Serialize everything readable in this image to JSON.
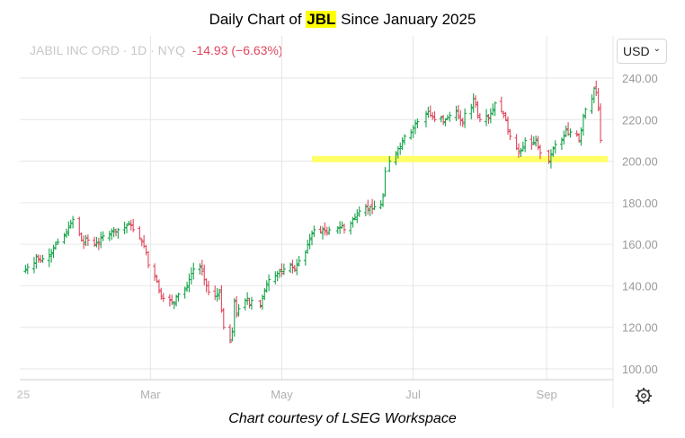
{
  "title": {
    "prefix": "Daily Chart of ",
    "ticker": "JBL",
    "suffix": " Since January 2025"
  },
  "info": {
    "name": "JABIL INC ORD",
    "sep1": "·",
    "interval": "1D",
    "sep2": "·",
    "exchange": "NYQ",
    "change": "-14.93 (−6.63%)"
  },
  "currency": {
    "label": "USD",
    "chevron": "⌄"
  },
  "footer": "Chart courtesy of LSEG Workspace",
  "settings_icon": "gear-icon",
  "colors": {
    "up": "#16a34a",
    "down": "#e0485e",
    "highlight": "#ffff66",
    "grid": "#e6e6e6"
  },
  "chart_data": {
    "type": "ohlc",
    "ylim": [
      94,
      244
    ],
    "yticks": [
      100,
      120,
      140,
      160,
      180,
      200,
      220,
      240
    ],
    "ytick_labels": [
      "100.00",
      "120.00",
      "140.00",
      "160.00",
      "180.00",
      "200.00",
      "220.00",
      "240.00"
    ],
    "x_labels": [
      {
        "label": "25",
        "date": "2025-01-01"
      },
      {
        "label": "Mar",
        "date": "2025-03-01"
      },
      {
        "label": "May",
        "date": "2025-05-01"
      },
      {
        "label": "Jul",
        "date": "2025-07-01"
      },
      {
        "label": "Sep",
        "date": "2025-09-01"
      }
    ],
    "x_range": [
      "2025-01-01",
      "2025-10-01"
    ],
    "support_level": {
      "value": 201,
      "from": "2025-05-15",
      "to": "2025-10-01"
    },
    "grid": true,
    "closes": [
      [
        "2025-01-02",
        148
      ],
      [
        "2025-01-03",
        149
      ],
      [
        "2025-01-06",
        151
      ],
      [
        "2025-01-07",
        154
      ],
      [
        "2025-01-08",
        153
      ],
      [
        "2025-01-09",
        152
      ],
      [
        "2025-01-10",
        153
      ],
      [
        "2025-01-13",
        155
      ],
      [
        "2025-01-14",
        156
      ],
      [
        "2025-01-15",
        158
      ],
      [
        "2025-01-16",
        160
      ],
      [
        "2025-01-17",
        161
      ],
      [
        "2025-01-20",
        164
      ],
      [
        "2025-01-21",
        166
      ],
      [
        "2025-01-22",
        168
      ],
      [
        "2025-01-23",
        170
      ],
      [
        "2025-01-24",
        172
      ],
      [
        "2025-01-27",
        165
      ],
      [
        "2025-01-28",
        162
      ],
      [
        "2025-01-29",
        160
      ],
      [
        "2025-01-30",
        163
      ],
      [
        "2025-01-31",
        162
      ],
      [
        "2025-02-03",
        160
      ],
      [
        "2025-02-04",
        161
      ],
      [
        "2025-02-05",
        160
      ],
      [
        "2025-02-06",
        163
      ],
      [
        "2025-02-07",
        164
      ],
      [
        "2025-02-10",
        165
      ],
      [
        "2025-02-11",
        166
      ],
      [
        "2025-02-12",
        167
      ],
      [
        "2025-02-13",
        166
      ],
      [
        "2025-02-14",
        167
      ],
      [
        "2025-02-17",
        168
      ],
      [
        "2025-02-18",
        169
      ],
      [
        "2025-02-19",
        170
      ],
      [
        "2025-02-20",
        169
      ],
      [
        "2025-02-21",
        167
      ],
      [
        "2025-02-24",
        163
      ],
      [
        "2025-02-25",
        161
      ],
      [
        "2025-02-26",
        159
      ],
      [
        "2025-02-27",
        156
      ],
      [
        "2025-02-28",
        150
      ],
      [
        "2025-03-03",
        145
      ],
      [
        "2025-03-04",
        142
      ],
      [
        "2025-03-05",
        138
      ],
      [
        "2025-03-06",
        135
      ],
      [
        "2025-03-07",
        134
      ],
      [
        "2025-03-10",
        133
      ],
      [
        "2025-03-11",
        132
      ],
      [
        "2025-03-12",
        132
      ],
      [
        "2025-03-13",
        135
      ],
      [
        "2025-03-14",
        136
      ],
      [
        "2025-03-17",
        138
      ],
      [
        "2025-03-18",
        140
      ],
      [
        "2025-03-19",
        143
      ],
      [
        "2025-03-20",
        146
      ],
      [
        "2025-03-21",
        148
      ],
      [
        "2025-03-24",
        149
      ],
      [
        "2025-03-25",
        147
      ],
      [
        "2025-03-26",
        143
      ],
      [
        "2025-03-27",
        140
      ],
      [
        "2025-03-28",
        137
      ],
      [
        "2025-03-31",
        135
      ],
      [
        "2025-04-01",
        136
      ],
      [
        "2025-04-02",
        137
      ],
      [
        "2025-04-03",
        128
      ],
      [
        "2025-04-04",
        120
      ],
      [
        "2025-04-07",
        113
      ],
      [
        "2025-04-08",
        118
      ],
      [
        "2025-04-09",
        133
      ],
      [
        "2025-04-10",
        126
      ],
      [
        "2025-04-11",
        129
      ],
      [
        "2025-04-14",
        133
      ],
      [
        "2025-04-15",
        134
      ],
      [
        "2025-04-16",
        131
      ],
      [
        "2025-04-17",
        133
      ],
      [
        "2025-04-21",
        130
      ],
      [
        "2025-04-22",
        134
      ],
      [
        "2025-04-23",
        138
      ],
      [
        "2025-04-24",
        141
      ],
      [
        "2025-04-25",
        143
      ],
      [
        "2025-04-28",
        145
      ],
      [
        "2025-04-29",
        146
      ],
      [
        "2025-04-30",
        147
      ],
      [
        "2025-05-01",
        146
      ],
      [
        "2025-05-02",
        148
      ],
      [
        "2025-05-05",
        150
      ],
      [
        "2025-05-06",
        149
      ],
      [
        "2025-05-07",
        148
      ],
      [
        "2025-05-08",
        150
      ],
      [
        "2025-05-09",
        152
      ],
      [
        "2025-05-12",
        156
      ],
      [
        "2025-05-13",
        160
      ],
      [
        "2025-05-14",
        163
      ],
      [
        "2025-05-15",
        165
      ],
      [
        "2025-05-16",
        167
      ],
      [
        "2025-05-19",
        166
      ],
      [
        "2025-05-20",
        167
      ],
      [
        "2025-05-21",
        166
      ],
      [
        "2025-05-22",
        165
      ],
      [
        "2025-05-23",
        167
      ],
      [
        "2025-05-27",
        168
      ],
      [
        "2025-05-28",
        168
      ],
      [
        "2025-05-29",
        169
      ],
      [
        "2025-05-30",
        167
      ],
      [
        "2025-06-02",
        170
      ],
      [
        "2025-06-03",
        172
      ],
      [
        "2025-06-04",
        173
      ],
      [
        "2025-06-05",
        175
      ],
      [
        "2025-06-06",
        176
      ],
      [
        "2025-06-09",
        178
      ],
      [
        "2025-06-10",
        177
      ],
      [
        "2025-06-11",
        178
      ],
      [
        "2025-06-12",
        177
      ],
      [
        "2025-06-13",
        178
      ],
      [
        "2025-06-16",
        179
      ],
      [
        "2025-06-17",
        183
      ],
      [
        "2025-06-18",
        195
      ],
      [
        "2025-06-20",
        200
      ],
      [
        "2025-06-23",
        204
      ],
      [
        "2025-06-24",
        206
      ],
      [
        "2025-06-25",
        207
      ],
      [
        "2025-06-26",
        210
      ],
      [
        "2025-06-27",
        212
      ],
      [
        "2025-06-30",
        214
      ],
      [
        "2025-07-01",
        216
      ],
      [
        "2025-07-02",
        218
      ],
      [
        "2025-07-03",
        219
      ],
      [
        "2025-07-07",
        223
      ],
      [
        "2025-07-08",
        224
      ],
      [
        "2025-07-09",
        222
      ],
      [
        "2025-07-10",
        221
      ],
      [
        "2025-07-11",
        220
      ],
      [
        "2025-07-14",
        221
      ],
      [
        "2025-07-15",
        219
      ],
      [
        "2025-07-16",
        220
      ],
      [
        "2025-07-17",
        221
      ],
      [
        "2025-07-18",
        222
      ],
      [
        "2025-07-21",
        224
      ],
      [
        "2025-07-22",
        221
      ],
      [
        "2025-07-23",
        220
      ],
      [
        "2025-07-24",
        218
      ],
      [
        "2025-07-25",
        223
      ],
      [
        "2025-07-28",
        226
      ],
      [
        "2025-07-29",
        230
      ],
      [
        "2025-07-30",
        228
      ],
      [
        "2025-07-31",
        222
      ],
      [
        "2025-08-01",
        220
      ],
      [
        "2025-08-04",
        222
      ],
      [
        "2025-08-05",
        221
      ],
      [
        "2025-08-06",
        223
      ],
      [
        "2025-08-07",
        225
      ],
      [
        "2025-08-08",
        228
      ],
      [
        "2025-08-11",
        224
      ],
      [
        "2025-08-12",
        222
      ],
      [
        "2025-08-13",
        220
      ],
      [
        "2025-08-14",
        215
      ],
      [
        "2025-08-15",
        212
      ],
      [
        "2025-08-18",
        206
      ],
      [
        "2025-08-19",
        204
      ],
      [
        "2025-08-20",
        205
      ],
      [
        "2025-08-21",
        207
      ],
      [
        "2025-08-22",
        210
      ],
      [
        "2025-08-25",
        208
      ],
      [
        "2025-08-26",
        209
      ],
      [
        "2025-08-27",
        210
      ],
      [
        "2025-08-28",
        207
      ],
      [
        "2025-08-29",
        204
      ],
      [
        "2025-09-02",
        200
      ],
      [
        "2025-09-03",
        203
      ],
      [
        "2025-09-04",
        206
      ],
      [
        "2025-09-05",
        208
      ],
      [
        "2025-09-08",
        210
      ],
      [
        "2025-09-09",
        212
      ],
      [
        "2025-09-10",
        215
      ],
      [
        "2025-09-11",
        213
      ],
      [
        "2025-09-12",
        214
      ],
      [
        "2025-09-15",
        213
      ],
      [
        "2025-09-16",
        210
      ],
      [
        "2025-09-17",
        215
      ],
      [
        "2025-09-18",
        222
      ],
      [
        "2025-09-19",
        225
      ],
      [
        "2025-09-22",
        230
      ],
      [
        "2025-09-23",
        235
      ],
      [
        "2025-09-24",
        233
      ],
      [
        "2025-09-25",
        225
      ],
      [
        "2025-09-26",
        210
      ]
    ]
  }
}
